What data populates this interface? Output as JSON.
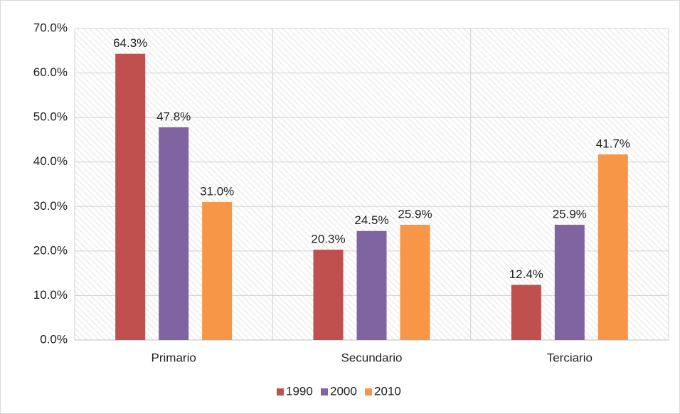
{
  "chart_data": {
    "type": "bar",
    "categories": [
      "Primario",
      "Secundario",
      "Terciario"
    ],
    "series": [
      {
        "name": "1990",
        "color": "#c0504d",
        "values": [
          64.3,
          20.3,
          12.4
        ],
        "value_labels": [
          "64.3%",
          "20.3%",
          "12.4%"
        ]
      },
      {
        "name": "2000",
        "color": "#8064a2",
        "values": [
          47.8,
          24.5,
          25.9
        ],
        "value_labels": [
          "47.8%",
          "24.5%",
          "25.9%"
        ]
      },
      {
        "name": "2010",
        "color": "#f79646",
        "values": [
          31.0,
          25.9,
          41.7
        ],
        "value_labels": [
          "31.0%",
          "25.9%",
          "41.7%"
        ]
      }
    ],
    "ylim": [
      0,
      70
    ],
    "yticks": [
      {
        "value": 0,
        "label": "0.0%"
      },
      {
        "value": 10,
        "label": "10.0%"
      },
      {
        "value": 20,
        "label": "20.0%"
      },
      {
        "value": 30,
        "label": "30.0%"
      },
      {
        "value": 40,
        "label": "40.0%"
      },
      {
        "value": 50,
        "label": "50.0%"
      },
      {
        "value": 60,
        "label": "60.0%"
      },
      {
        "value": 70,
        "label": "70.0%"
      }
    ],
    "grid": true,
    "legend": "bottom"
  }
}
